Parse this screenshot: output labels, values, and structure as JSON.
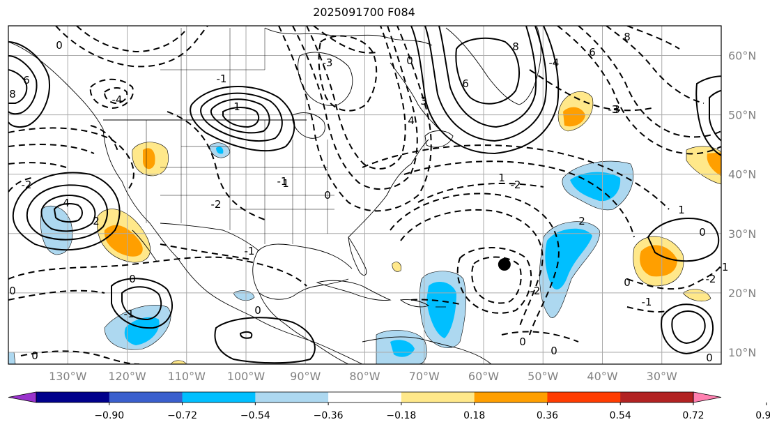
{
  "title": "2025091700 F084",
  "map": {
    "lon_min": -140,
    "lon_max": -20,
    "lat_min": 8,
    "lat_max": 65,
    "lon_ticks": [
      {
        "lon": -130,
        "label": "130°W"
      },
      {
        "lon": -120,
        "label": "120°W"
      },
      {
        "lon": -110,
        "label": "110°W"
      },
      {
        "lon": -100,
        "label": "100°W"
      },
      {
        "lon": -90,
        "label": "90°W"
      },
      {
        "lon": -80,
        "label": "80°W"
      },
      {
        "lon": -70,
        "label": "70°W"
      },
      {
        "lon": -60,
        "label": "60°W"
      },
      {
        "lon": -50,
        "label": "50°W"
      },
      {
        "lon": -40,
        "label": "40°W"
      },
      {
        "lon": -30,
        "label": "30°W"
      }
    ],
    "lat_ticks": [
      {
        "lat": 60,
        "label": "60°N"
      },
      {
        "lat": 50,
        "label": "50°N"
      },
      {
        "lat": 40,
        "label": "40°N"
      },
      {
        "lat": 30,
        "label": "30°N"
      },
      {
        "lat": 20,
        "label": "20°N"
      },
      {
        "lat": 10,
        "label": "10°N"
      }
    ],
    "storm_marker": {
      "lon": -56.5,
      "lat": 24.8
    },
    "contour_labels": [
      "0",
      "-1",
      "-2",
      "-3",
      "-4",
      "1",
      "2",
      "3",
      "4",
      "6",
      "8"
    ]
  },
  "colorbar": {
    "ticks": [
      "−0.90",
      "−0.72",
      "−0.54",
      "−0.36",
      "−0.18",
      "0.18",
      "0.36",
      "0.54",
      "0.72",
      "0.90"
    ],
    "colors": [
      "#9932cc",
      "#00008b",
      "#3a5fcd",
      "#00bfff",
      "#add8f0",
      "#ffffff",
      "#ffe88a",
      "#ff9f00",
      "#ff3c00",
      "#b22222",
      "#ff80b0"
    ]
  }
}
